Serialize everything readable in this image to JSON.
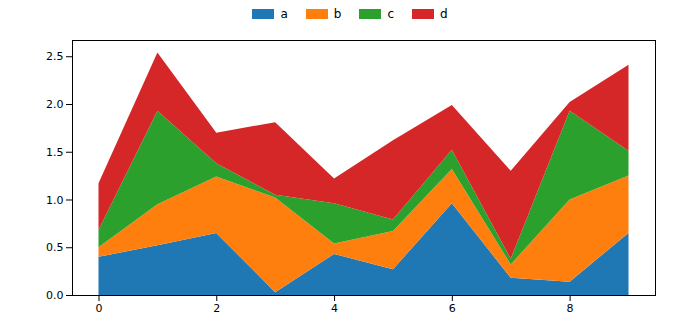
{
  "chart_data": {
    "type": "area",
    "stacked": true,
    "legend": "top",
    "x": [
      0,
      1,
      2,
      3,
      4,
      5,
      6,
      7,
      8,
      9
    ],
    "xlim": [
      -0.45,
      9.45
    ],
    "xticks": [
      0,
      2,
      4,
      6,
      8
    ],
    "ylim": [
      0,
      2.67
    ],
    "yticks": [
      {
        "value": 0,
        "label": "0.0"
      },
      {
        "value": 0.5,
        "label": "0.5"
      },
      {
        "value": 1,
        "label": "1.0"
      },
      {
        "value": 1.5,
        "label": "1.5"
      },
      {
        "value": 2,
        "label": "2.0"
      },
      {
        "value": 2.5,
        "label": "2.5"
      }
    ],
    "series": [
      {
        "name": "a",
        "color": "#1f77b4",
        "values": [
          0.4,
          0.52,
          0.65,
          0.03,
          0.43,
          0.27,
          0.96,
          0.18,
          0.14,
          0.65
        ]
      },
      {
        "name": "b",
        "color": "#ff7f0e",
        "values": [
          0.1,
          0.43,
          0.59,
          0.99,
          0.11,
          0.4,
          0.36,
          0.14,
          0.86,
          0.6
        ]
      },
      {
        "name": "c",
        "color": "#2ca02c",
        "values": [
          0.18,
          0.98,
          0.14,
          0.03,
          0.42,
          0.12,
          0.2,
          0.06,
          0.93,
          0.26
        ]
      },
      {
        "name": "d",
        "color": "#d62728",
        "values": [
          0.49,
          0.61,
          0.32,
          0.76,
          0.26,
          0.83,
          0.47,
          0.92,
          0.09,
          0.9
        ]
      }
    ]
  }
}
